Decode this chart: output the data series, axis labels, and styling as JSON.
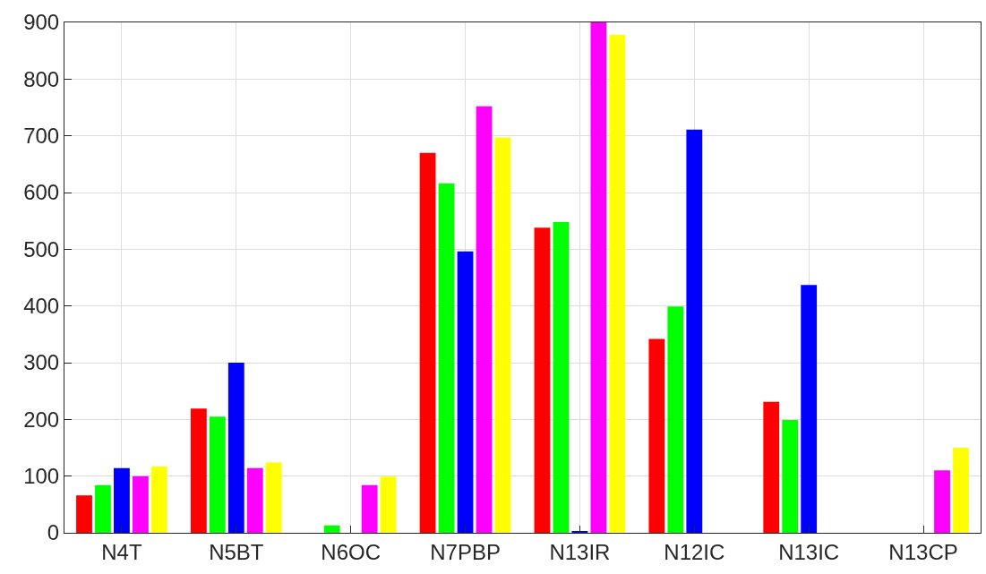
{
  "chart_data": {
    "type": "bar",
    "categories": [
      "N4T",
      "N5BT",
      "N6OC",
      "N7PBP",
      "N13IR",
      "N12IC",
      "N13IC",
      "N13CP"
    ],
    "series": [
      {
        "color": "#ff0000",
        "values": [
          66,
          219,
          0,
          670,
          538,
          342,
          231,
          0
        ]
      },
      {
        "color": "#00ff00",
        "values": [
          84,
          205,
          13,
          616,
          548,
          399,
          199,
          0
        ]
      },
      {
        "color": "#0000ff",
        "values": [
          114,
          300,
          0,
          496,
          3,
          711,
          437,
          0
        ]
      },
      {
        "color": "#ff00ff",
        "values": [
          100,
          114,
          84,
          752,
          900,
          0,
          0,
          110
        ]
      },
      {
        "color": "#ffff00",
        "values": [
          117,
          124,
          99,
          697,
          878,
          0,
          0,
          150
        ]
      }
    ],
    "ylim": [
      0,
      900
    ],
    "yticks": [
      0,
      100,
      200,
      300,
      400,
      500,
      600,
      700,
      800,
      900
    ],
    "grid": true
  }
}
